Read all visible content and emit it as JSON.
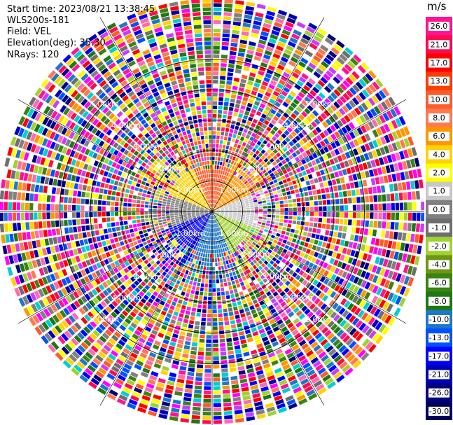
{
  "header": {
    "start_time": "Start time: 2023/08/21 13:38:45",
    "instrument": "WLS200s-181",
    "field": "Field: VEL",
    "elevation": "Elevation(deg): 35.30",
    "nrays": "NRays: 120"
  },
  "chart_data": {
    "type": "ppi-scan",
    "field": "VEL",
    "unit": "m/s",
    "elevation_deg": 35.3,
    "n_rays": 120,
    "range_labels": [
      "1.00km",
      "2.00km",
      "3.00km",
      "4.00km",
      "5.00km"
    ],
    "colorbar": {
      "unit": "m/s",
      "ticks": [
        "26.0",
        "21.0",
        "17.0",
        "13.0",
        "10.0",
        "8.0",
        "6.0",
        "4.0",
        "2.0",
        "1.0",
        "0.0",
        "-1.0",
        "-2.0",
        "-4.0",
        "-6.0",
        "-8.0",
        "-10.0",
        "-13.0",
        "-17.0",
        "-21.0",
        "-26.0",
        "-30.0"
      ],
      "colors": [
        "#ff1493",
        "#ff0a50",
        "#ff0000",
        "#ff3c00",
        "#ff5a28",
        "#ff7850",
        "#ff9600",
        "#ffd200",
        "#ffff00",
        "#c8c8c8",
        "#808080",
        "#6e6e6e",
        "#a0d232",
        "#6e9614",
        "#3c8214",
        "#1e7814",
        "#1e78c8",
        "#0050ff",
        "#0000ff",
        "#0000b4",
        "#000080",
        "#00005a"
      ]
    },
    "valid_ring_km": 1.4,
    "sector_pattern": {
      "north": "#ff5a28",
      "northeast": "#ff9600",
      "east": "#c8c8c8",
      "southeast": "#a0d232",
      "south": "#1e78c8",
      "southwest": "#0000ff",
      "west": "#808080",
      "northwest": "#ffd200"
    }
  }
}
